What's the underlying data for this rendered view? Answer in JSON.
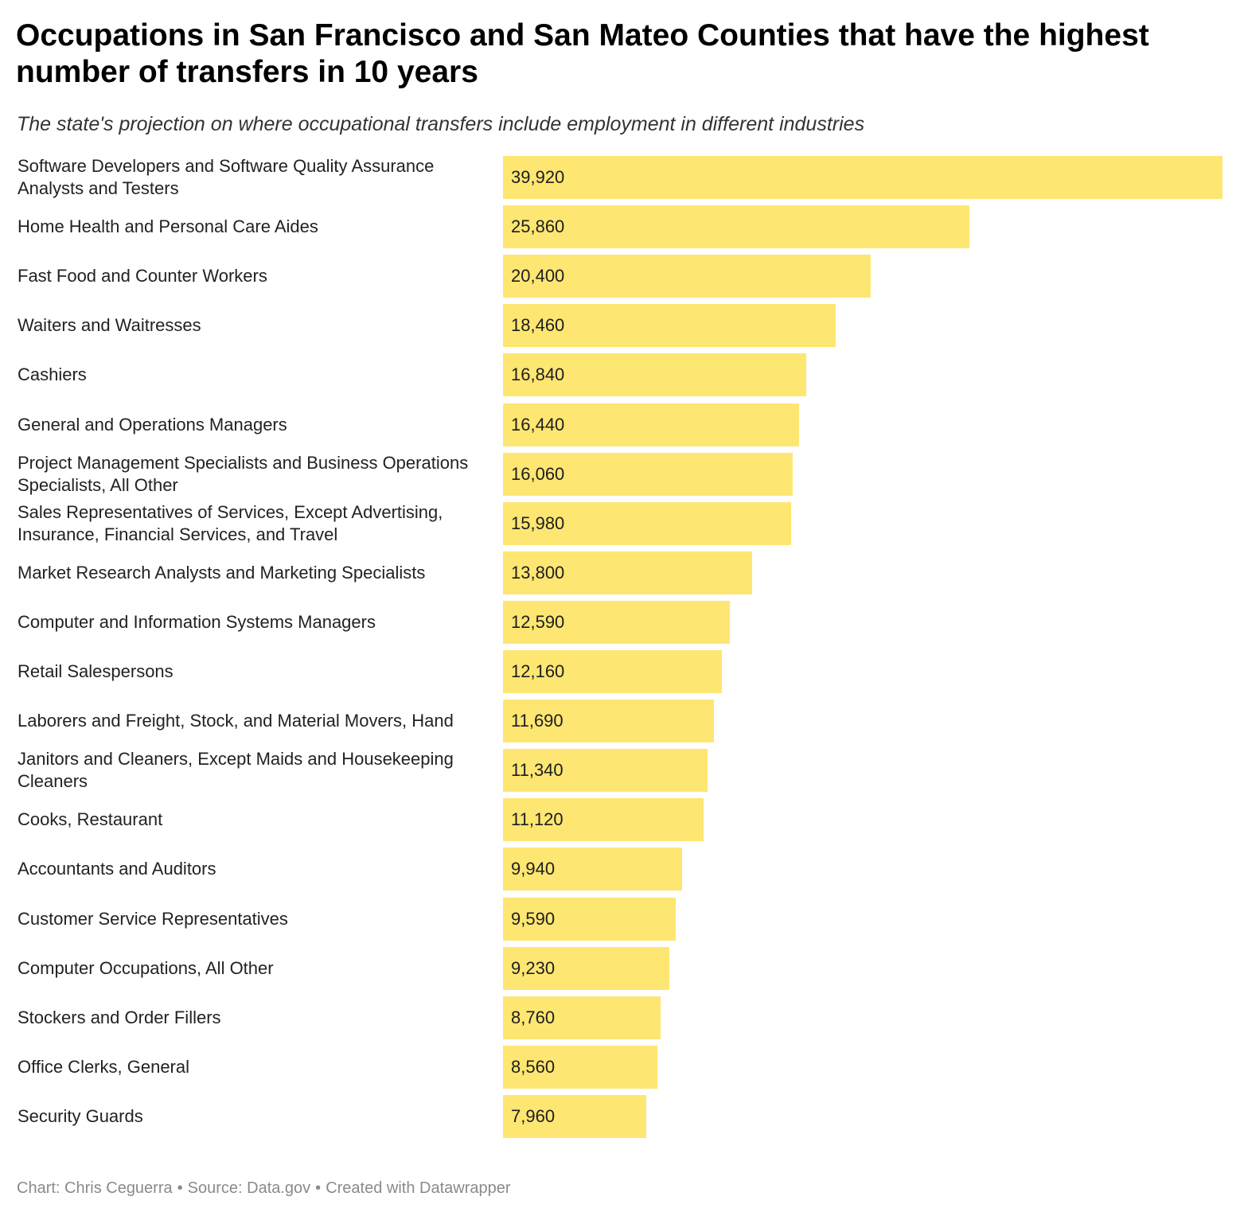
{
  "header": {
    "title": "Occupations in San Francisco and San Mateo Counties that have the highest number of transfers in 10 years",
    "subtitle": "The state's projection on where occupational transfers include employment in different industries"
  },
  "footer": {
    "chart_credit": "Chart: Chris Ceguerra",
    "separator": "•",
    "source": "Source: Data.gov",
    "created_with": "Created with Datawrapper"
  },
  "colors": {
    "bar": "#fee672",
    "title": "#000000",
    "footer": "#8a8a8a"
  },
  "chart_data": {
    "type": "bar",
    "orientation": "horizontal",
    "title": "Occupations in San Francisco and San Mateo Counties that have the highest number of transfers in 10 years",
    "subtitle": "The state's projection on where occupational transfers include employment in different industries",
    "xlabel": "",
    "ylabel": "",
    "grid": false,
    "xlim": [
      0,
      39920
    ],
    "categories": [
      "Software Developers and Software Quality Assurance Analysts and Testers",
      "Home Health and Personal Care Aides",
      "Fast Food and Counter Workers",
      "Waiters and Waitresses",
      "Cashiers",
      "General and Operations Managers",
      "Project Management Specialists and Business Operations Specialists, All Other",
      "Sales Representatives of Services, Except Advertising, Insurance, Financial Services, and Travel",
      "Market Research Analysts and Marketing Specialists",
      "Computer and Information Systems Managers",
      "Retail Salespersons",
      "Laborers and Freight, Stock, and Material Movers, Hand",
      "Janitors and Cleaners, Except Maids and Housekeeping Cleaners",
      "Cooks, Restaurant",
      "Accountants and Auditors",
      "Customer Service Representatives",
      "Computer Occupations, All Other",
      "Stockers and Order Fillers",
      "Office Clerks, General",
      "Security Guards"
    ],
    "values": [
      39920,
      25860,
      20400,
      18460,
      16840,
      16440,
      16060,
      15980,
      13800,
      12590,
      12160,
      11690,
      11340,
      11120,
      9940,
      9590,
      9230,
      8760,
      8560,
      7960
    ],
    "value_labels": [
      "39,920",
      "25,860",
      "20,400",
      "18,460",
      "16,840",
      "16,440",
      "16,060",
      "15,980",
      "13,800",
      "12,590",
      "12,160",
      "11,690",
      "11,340",
      "11,120",
      "9,940",
      "9,590",
      "9,230",
      "8,760",
      "8,560",
      "7,960"
    ]
  }
}
